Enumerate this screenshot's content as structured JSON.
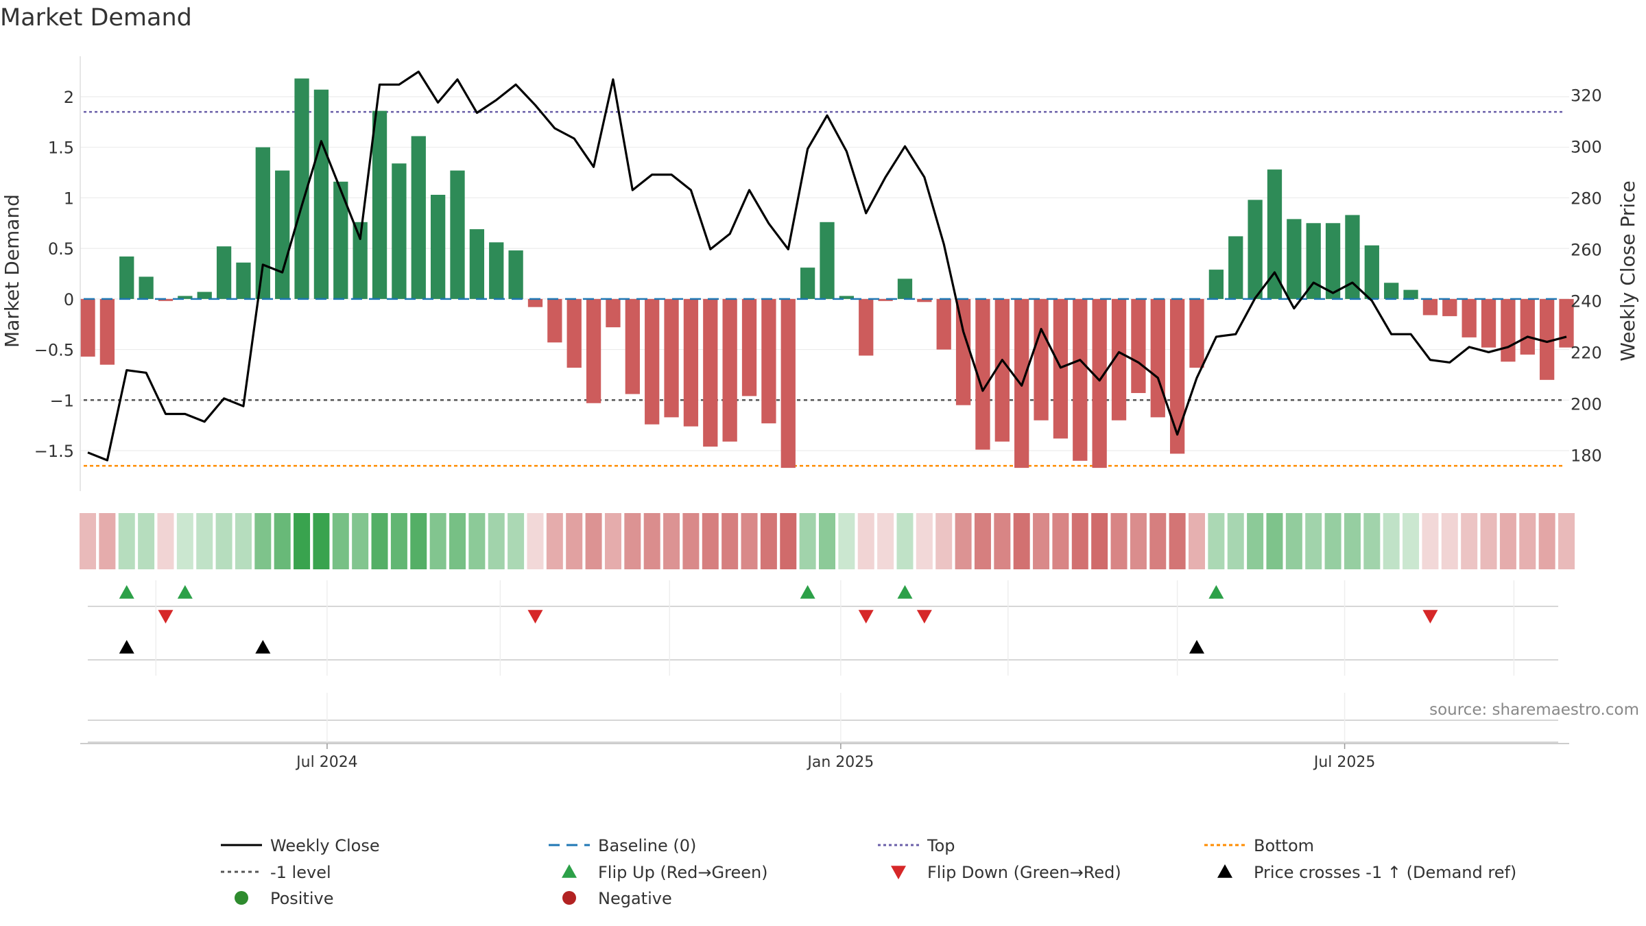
{
  "chart_data": {
    "type": "bar+line",
    "title": "Market Demand",
    "ylabel_left": "Market Demand",
    "ylabel_right": "Weekly Close Price",
    "source": "source: sharemaestro.com",
    "left_ylim": [
      -1.9,
      2.4
    ],
    "left_ticks": [
      2,
      1.5,
      1,
      0.5,
      0,
      -0.5,
      -1,
      -1.5
    ],
    "left_tick_labels": [
      "2",
      "1.5",
      "1",
      "0.5",
      "0",
      "−0.5",
      "−1",
      "−1.5"
    ],
    "right_ylim": [
      166,
      335
    ],
    "right_ticks": [
      320,
      300,
      280,
      260,
      240,
      220,
      200,
      180
    ],
    "right_tick_labels": [
      "320",
      "300",
      "280",
      "260",
      "240",
      "220",
      "200",
      "180"
    ],
    "x_tick_labels": [
      "Jul 2024",
      "Jan 2025",
      "Jul 2025"
    ],
    "x_tick_weeks": [
      12.3,
      38.7,
      64.6
    ],
    "x_minor_weeks": [
      3.5,
      21.2,
      29.9,
      47.3,
      56.0,
      73.3
    ],
    "top_level": 1.85,
    "bottom_level": -1.65,
    "minus_one_level": -1,
    "demand": [
      -0.57,
      -0.65,
      0.42,
      0.22,
      -0.02,
      0.03,
      0.07,
      0.52,
      0.36,
      1.5,
      1.27,
      2.18,
      2.07,
      1.16,
      0.76,
      1.86,
      1.34,
      1.61,
      1.03,
      1.27,
      0.69,
      0.56,
      0.48,
      -0.08,
      -0.43,
      -0.68,
      -1.03,
      -0.28,
      -0.94,
      -1.24,
      -1.17,
      -1.26,
      -1.46,
      -1.41,
      -0.96,
      -1.23,
      -1.67,
      0.31,
      0.76,
      0.03,
      -0.56,
      -0.02,
      0.2,
      -0.03,
      -0.5,
      -1.05,
      -1.49,
      -1.41,
      -1.67,
      -1.2,
      -1.38,
      -1.6,
      -1.67,
      -1.2,
      -0.93,
      -1.17,
      -1.53,
      -0.68,
      0.29,
      0.62,
      0.98,
      1.28,
      0.79,
      0.75,
      0.75,
      0.83,
      0.53,
      0.16,
      0.09,
      -0.16,
      -0.17,
      -0.38,
      -0.48,
      -0.62,
      -0.55,
      -0.8,
      -0.48
    ],
    "close": [
      181,
      178,
      213,
      212,
      196,
      196,
      193,
      202,
      199,
      254,
      251,
      277,
      302,
      283,
      264,
      324,
      324,
      329,
      317,
      326,
      313,
      318,
      324,
      316,
      307,
      303,
      292,
      326,
      283,
      289,
      289,
      283,
      260,
      266,
      283,
      270,
      260,
      299,
      312,
      298,
      274,
      288,
      300,
      288,
      262,
      228,
      205,
      217,
      207,
      229,
      214,
      217,
      209,
      220,
      216,
      210,
      188,
      210,
      226,
      227,
      241,
      251,
      237,
      247,
      243,
      247,
      240,
      227,
      227,
      217,
      216,
      222,
      220,
      222,
      226,
      224,
      226
    ],
    "heat_alpha": [
      0.35,
      0.42,
      0.35,
      0.35,
      0.22,
      0.25,
      0.3,
      0.35,
      0.35,
      0.62,
      0.72,
      0.95,
      0.95,
      0.65,
      0.6,
      0.82,
      0.75,
      0.82,
      0.6,
      0.65,
      0.55,
      0.45,
      0.4,
      0.2,
      0.42,
      0.48,
      0.55,
      0.42,
      0.55,
      0.58,
      0.55,
      0.6,
      0.65,
      0.65,
      0.6,
      0.7,
      0.75,
      0.45,
      0.55,
      0.25,
      0.22,
      0.2,
      0.3,
      0.2,
      0.3,
      0.55,
      0.65,
      0.62,
      0.72,
      0.6,
      0.62,
      0.72,
      0.75,
      0.62,
      0.58,
      0.65,
      0.7,
      0.4,
      0.4,
      0.42,
      0.55,
      0.62,
      0.52,
      0.45,
      0.5,
      0.5,
      0.45,
      0.3,
      0.25,
      0.2,
      0.22,
      0.3,
      0.35,
      0.42,
      0.4,
      0.45,
      0.35
    ],
    "flip_up_weeks": [
      2,
      5,
      37,
      42,
      58
    ],
    "flip_down_weeks": [
      4,
      23,
      40,
      43,
      69
    ],
    "price_cross_weeks": [
      2,
      9,
      57
    ],
    "colors": {
      "positive_bar": "#2e8b57",
      "negative_bar": "#cd5c5c",
      "heat_positive": "#2e9e44",
      "heat_negative": "#c03a3a",
      "flip_up": "#2ca048",
      "flip_down": "#d62728",
      "price_cross": "#000000",
      "top_line": "#6a5fa8",
      "bottom_line": "#ff8c00",
      "baseline": "#1f77b4",
      "minus_one": "#555555",
      "close_line": "#000000",
      "legend_positive": "#2e8b2e",
      "legend_negative": "#b22222"
    },
    "legend": [
      {
        "label": "Weekly Close",
        "kind": "line-solid"
      },
      {
        "label": "Baseline (0)",
        "kind": "line-dash-blue"
      },
      {
        "label": "Top",
        "kind": "line-dot-purple"
      },
      {
        "label": "Bottom",
        "kind": "line-dot-orange"
      },
      {
        "label": "-1 level",
        "kind": "line-dot-gray"
      },
      {
        "label": "Flip Up (Red→Green)",
        "kind": "tri-up-green"
      },
      {
        "label": "Flip Down (Green→Red)",
        "kind": "tri-down-red"
      },
      {
        "label": "Price crosses -1 ↑ (Demand ref)",
        "kind": "tri-up-black"
      },
      {
        "label": "Positive",
        "kind": "dot-green"
      },
      {
        "label": "Negative",
        "kind": "dot-red"
      }
    ]
  }
}
